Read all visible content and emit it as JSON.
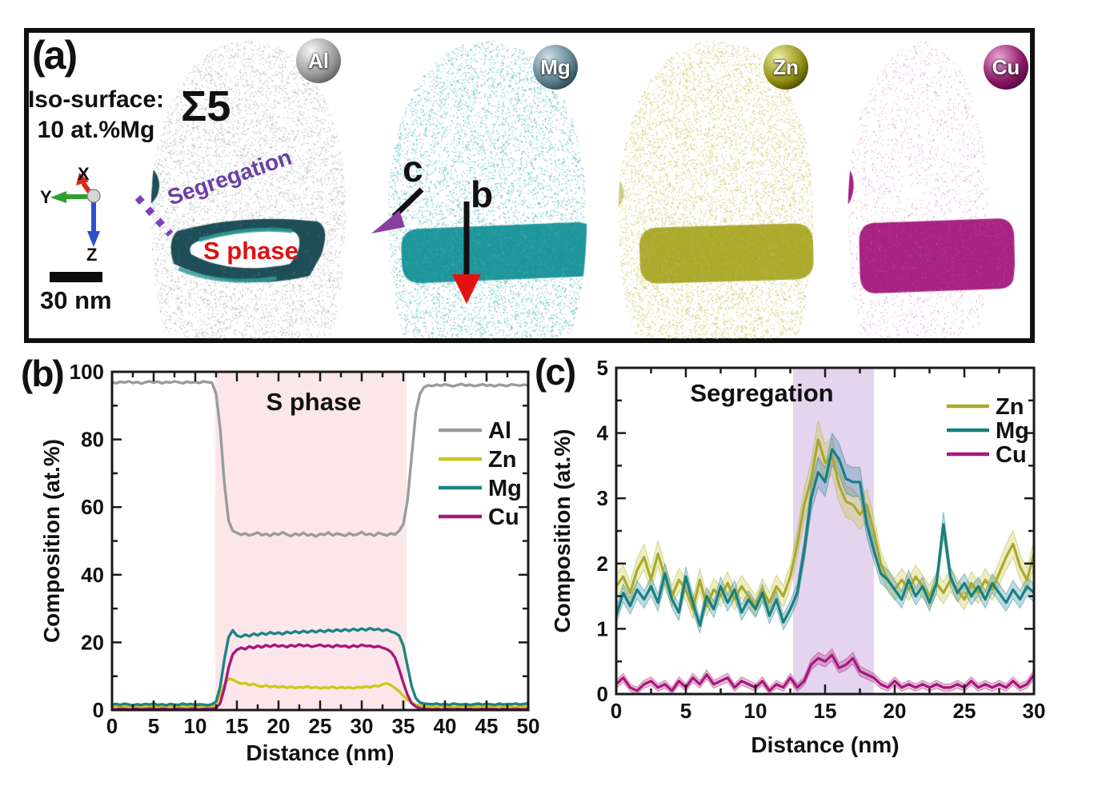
{
  "panel_a": {
    "label": "(a)",
    "iso_surface_line1": "Iso-surface:",
    "iso_surface_line2": "10 at.%Mg",
    "sigma": "Σ5",
    "segregation": "Segregation",
    "s_phase": "S phase",
    "axis_triad": {
      "x": "X",
      "y": "Y",
      "z": "Z"
    },
    "scale_bar": "30 nm",
    "arrow_b": "b",
    "arrow_c": "c",
    "colors": {
      "segregation_text": "#6a3fa5",
      "s_phase_text": "#dd1111",
      "iso_ring": "#1e4f58",
      "iso_ring_highlight": "#2f9b98",
      "dashed_line": "#7b3fc0",
      "arrow_c_head": "#8a3fa0",
      "arrow_b_head": "#e31212",
      "triad_x": "#d82718",
      "triad_y": "#2ca02c",
      "triad_z": "#2b50c8"
    },
    "elements": [
      {
        "symbol": "Al",
        "cloud": "#a2a2a2",
        "dense": "",
        "badge": [
          "#f6f6f6",
          "#9a9a9a",
          "#3a3a3a"
        ]
      },
      {
        "symbol": "Mg",
        "cloud": "#41b1ad",
        "dense": "#0f8f94",
        "badge": [
          "#cfdfe6",
          "#5e8290",
          "#101e26"
        ]
      },
      {
        "symbol": "Zn",
        "cloud": "#c9c765",
        "dense": "#a6a51f",
        "badge": [
          "#ededa6",
          "#8f8f12",
          "#1e1e00"
        ]
      },
      {
        "symbol": "Cu",
        "cloud": "#c766b2",
        "dense": "#a1127a",
        "badge": [
          "#e9a6d6",
          "#8a1866",
          "#2c0220"
        ]
      }
    ]
  },
  "panel_b": {
    "label": "(b)"
  },
  "panel_c": {
    "label": "(c)"
  },
  "chart_data": [
    {
      "type": "line",
      "panel": "b",
      "title": "S phase",
      "xlabel": "Distance (nm)",
      "ylabel": "Composition (at.%)",
      "xlim": [
        0,
        50
      ],
      "ylim": [
        0,
        100
      ],
      "xticks": {
        "major": 5,
        "minor": 2.5
      },
      "yticks": {
        "major": 20,
        "minor": 10
      },
      "grid": false,
      "legend_position": "inside-right",
      "shaded_region": {
        "x0": 12.4,
        "x1": 35.4,
        "color": "#fbe7ea"
      },
      "x_start": 0,
      "x_step": 0.5,
      "series": [
        {
          "name": "Al",
          "color": "#9b9b9b",
          "values": [
            97.0,
            96.6,
            97.1,
            96.8,
            97.2,
            96.7,
            97.0,
            96.5,
            96.9,
            97.2,
            96.8,
            97.1,
            96.6,
            97.0,
            96.8,
            97.2,
            96.9,
            96.6,
            97.1,
            96.8,
            97.0,
            96.7,
            97.2,
            96.9,
            96.8,
            93.5,
            83.0,
            67.0,
            56.0,
            53.0,
            52.4,
            51.8,
            52.2,
            51.6,
            52.0,
            52.5,
            51.7,
            52.1,
            51.5,
            52.3,
            51.8,
            52.6,
            51.9,
            51.4,
            52.2,
            51.7,
            52.4,
            51.6,
            52.0,
            51.3,
            52.1,
            51.8,
            52.5,
            51.6,
            52.2,
            51.9,
            51.5,
            52.3,
            51.7,
            52.0,
            52.6,
            51.8,
            52.1,
            51.5,
            52.4,
            52.0,
            51.6,
            52.2,
            51.9,
            53.0,
            55.0,
            62.0,
            75.0,
            88.0,
            93.5,
            95.5,
            96.0,
            95.8,
            96.2,
            95.9,
            96.3,
            96.0,
            95.7,
            96.1,
            96.4,
            95.9,
            96.2,
            95.8,
            96.0,
            96.3,
            95.9,
            96.1,
            95.7,
            96.2,
            96.0,
            95.8,
            96.3,
            96.1,
            95.9,
            96.2,
            96.0
          ]
        },
        {
          "name": "Zn",
          "color": "#cdc71e",
          "values": [
            1.0,
            1.2,
            0.9,
            1.1,
            1.0,
            1.3,
            1.0,
            0.9,
            1.1,
            1.0,
            1.2,
            0.9,
            1.1,
            1.0,
            1.2,
            1.0,
            0.9,
            1.1,
            1.0,
            1.2,
            1.0,
            1.1,
            0.9,
            1.2,
            1.0,
            1.8,
            4.5,
            7.5,
            9.3,
            9.0,
            8.3,
            7.8,
            8.0,
            7.4,
            7.7,
            7.2,
            6.9,
            7.3,
            6.8,
            7.1,
            6.7,
            7.0,
            6.6,
            6.9,
            6.5,
            6.8,
            6.6,
            7.0,
            6.5,
            6.8,
            6.4,
            6.7,
            6.5,
            6.9,
            6.4,
            6.8,
            6.5,
            6.7,
            6.4,
            6.8,
            6.6,
            7.0,
            6.7,
            7.2,
            7.0,
            7.6,
            7.9,
            7.4,
            6.5,
            5.5,
            4.2,
            3.0,
            2.2,
            1.6,
            1.3,
            1.1,
            1.0,
            1.1,
            0.9,
            1.2,
            1.0,
            1.1,
            0.9,
            1.0,
            1.2,
            0.9,
            1.1,
            1.0,
            1.2,
            1.0,
            0.9,
            1.1,
            1.0,
            1.2,
            0.9,
            1.1,
            1.0,
            0.9,
            1.1,
            1.0,
            1.1
          ]
        },
        {
          "name": "Mg",
          "color": "#1f8383",
          "values": [
            1.6,
            1.8,
            1.5,
            1.9,
            1.6,
            1.4,
            1.7,
            1.5,
            1.8,
            1.6,
            1.9,
            1.5,
            1.7,
            1.4,
            1.8,
            1.6,
            1.5,
            1.9,
            1.6,
            1.8,
            1.5,
            1.7,
            1.6,
            1.4,
            1.7,
            2.5,
            7.0,
            15.0,
            21.5,
            23.6,
            22.0,
            21.6,
            22.3,
            21.8,
            22.6,
            22.1,
            22.8,
            22.3,
            23.0,
            22.5,
            22.9,
            22.4,
            23.1,
            22.7,
            23.3,
            22.8,
            23.4,
            22.9,
            23.5,
            23.0,
            23.6,
            23.1,
            23.7,
            23.2,
            23.8,
            23.3,
            23.9,
            23.4,
            24.0,
            23.5,
            24.1,
            23.6,
            24.2,
            23.7,
            24.0,
            23.4,
            23.8,
            23.2,
            22.8,
            22.0,
            19.0,
            13.0,
            7.0,
            3.5,
            2.2,
            1.9,
            1.8,
            1.7,
            1.9,
            1.6,
            1.8,
            1.5,
            1.9,
            1.7,
            1.6,
            1.8,
            1.5,
            1.7,
            1.9,
            1.6,
            1.8,
            1.7,
            1.5,
            1.9,
            1.6,
            1.8,
            1.7,
            1.9,
            1.6,
            1.8,
            2.0
          ]
        },
        {
          "name": "Cu",
          "color": "#a8177b",
          "values": [
            0.3,
            0.2,
            0.4,
            0.3,
            0.2,
            0.3,
            0.4,
            0.2,
            0.3,
            0.4,
            0.3,
            0.2,
            0.4,
            0.3,
            0.2,
            0.3,
            0.4,
            0.3,
            0.2,
            0.4,
            0.3,
            0.2,
            0.3,
            0.4,
            0.3,
            0.6,
            2.0,
            6.5,
            12.5,
            16.5,
            17.8,
            18.4,
            18.0,
            18.8,
            18.3,
            19.0,
            18.5,
            19.2,
            18.7,
            19.3,
            18.8,
            19.1,
            18.6,
            19.2,
            18.8,
            19.4,
            18.9,
            19.2,
            18.7,
            19.0,
            19.3,
            18.8,
            19.1,
            18.6,
            19.2,
            18.8,
            19.0,
            18.5,
            19.1,
            18.7,
            19.3,
            18.9,
            19.0,
            18.6,
            18.9,
            18.4,
            18.0,
            17.2,
            15.5,
            12.0,
            8.0,
            4.5,
            2.0,
            1.0,
            0.5,
            0.3,
            0.25,
            0.2,
            0.3,
            0.2,
            0.25,
            0.3,
            0.2,
            0.3,
            0.25,
            0.2,
            0.3,
            0.2,
            0.25,
            0.3,
            0.2,
            0.3,
            0.25,
            0.2,
            0.3,
            0.25,
            0.2,
            0.3,
            0.25,
            0.2,
            0.3
          ]
        }
      ]
    },
    {
      "type": "line",
      "panel": "c",
      "title": "Segregation",
      "xlabel": "Distance (nm)",
      "ylabel": "Composition (at.%)",
      "xlim": [
        0,
        30
      ],
      "ylim": [
        0,
        5
      ],
      "xticks": {
        "major": 5,
        "minor": 2.5
      },
      "yticks": {
        "major": 1,
        "minor": 0.5
      },
      "grid": false,
      "legend_position": "inside-right",
      "shaded_region": {
        "x0": 12.7,
        "x1": 18.5,
        "color": "#e4d4ee"
      },
      "x_start": 0,
      "x_step": 0.5,
      "series": [
        {
          "name": "Zn",
          "color": "#a9a92e",
          "band_fill": "rgba(201,199,60,0.32)",
          "band": {
            "base": 0.08,
            "scale": 0.055
          },
          "values": [
            1.65,
            1.8,
            1.55,
            1.9,
            2.1,
            1.75,
            2.15,
            1.8,
            1.5,
            1.75,
            1.6,
            1.3,
            1.75,
            1.35,
            1.6,
            1.5,
            1.7,
            1.45,
            1.65,
            1.5,
            1.35,
            1.6,
            1.4,
            1.65,
            1.5,
            1.8,
            2.3,
            2.9,
            3.3,
            3.9,
            3.55,
            3.65,
            3.2,
            2.95,
            2.9,
            2.75,
            2.9,
            2.5,
            2.0,
            1.75,
            1.6,
            1.75,
            1.6,
            1.8,
            1.65,
            1.5,
            1.7,
            1.55,
            1.75,
            1.6,
            1.45,
            1.7,
            1.55,
            1.75,
            1.6,
            1.85,
            2.1,
            2.3,
            1.95,
            1.75,
            2.15
          ]
        },
        {
          "name": "Mg",
          "color": "#17807f",
          "band_fill": "rgba(45,125,165,0.30)",
          "band": {
            "base": 0.06,
            "scale": 0.05
          },
          "values": [
            1.2,
            1.55,
            1.35,
            1.6,
            1.45,
            1.65,
            1.4,
            1.85,
            1.45,
            1.25,
            1.8,
            1.4,
            1.05,
            1.5,
            1.3,
            1.65,
            1.4,
            1.6,
            1.25,
            1.45,
            1.3,
            1.55,
            1.2,
            1.45,
            1.1,
            1.3,
            1.55,
            2.2,
            3.0,
            3.4,
            3.25,
            3.75,
            3.6,
            3.3,
            3.25,
            3.25,
            2.6,
            2.2,
            1.85,
            1.75,
            1.6,
            1.45,
            1.75,
            1.5,
            1.65,
            1.4,
            1.7,
            2.6,
            1.8,
            1.55,
            1.7,
            1.5,
            1.65,
            1.45,
            1.7,
            1.55,
            1.4,
            1.6,
            1.45,
            1.65,
            1.55
          ]
        },
        {
          "name": "Cu",
          "color": "#a8177b",
          "band_fill": "rgba(168,23,123,0.28)",
          "band": {
            "base": 0.05,
            "scale": 0.07
          },
          "values": [
            0.15,
            0.25,
            0.1,
            0.05,
            0.15,
            0.2,
            0.1,
            0.15,
            0.05,
            0.2,
            0.1,
            0.25,
            0.15,
            0.3,
            0.15,
            0.2,
            0.25,
            0.1,
            0.2,
            0.15,
            0.1,
            0.2,
            0.05,
            0.15,
            0.1,
            0.25,
            0.1,
            0.2,
            0.45,
            0.55,
            0.5,
            0.6,
            0.4,
            0.45,
            0.55,
            0.35,
            0.3,
            0.25,
            0.15,
            0.1,
            0.2,
            0.1,
            0.15,
            0.1,
            0.15,
            0.1,
            0.15,
            0.1,
            0.1,
            0.15,
            0.1,
            0.2,
            0.1,
            0.15,
            0.1,
            0.15,
            0.1,
            0.2,
            0.1,
            0.15,
            0.3
          ]
        }
      ]
    }
  ]
}
